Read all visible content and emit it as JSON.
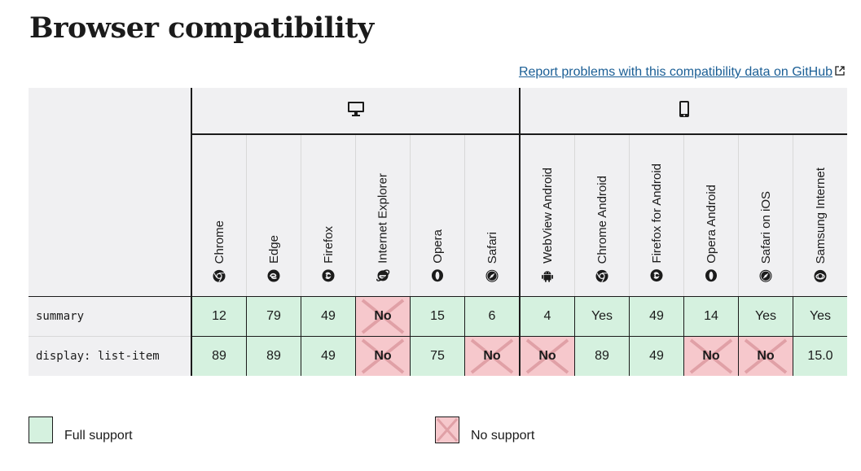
{
  "page": {
    "title": "Browser compatibility",
    "report_link": "Report problems with this compatibility data on GitHub"
  },
  "platforms": {
    "desktop_icon": "desktop-icon",
    "mobile_icon": "mobile-icon"
  },
  "browsers": [
    {
      "name": "Chrome",
      "icon": "chrome-icon",
      "platform": "desktop"
    },
    {
      "name": "Edge",
      "icon": "edge-icon",
      "platform": "desktop"
    },
    {
      "name": "Firefox",
      "icon": "firefox-icon",
      "platform": "desktop"
    },
    {
      "name": "Internet Explorer",
      "icon": "internet-explorer-icon",
      "platform": "desktop"
    },
    {
      "name": "Opera",
      "icon": "opera-icon",
      "platform": "desktop"
    },
    {
      "name": "Safari",
      "icon": "safari-icon",
      "platform": "desktop"
    },
    {
      "name": "WebView Android",
      "icon": "android-icon",
      "platform": "mobile"
    },
    {
      "name": "Chrome Android",
      "icon": "chrome-icon",
      "platform": "mobile"
    },
    {
      "name": "Firefox for Android",
      "icon": "firefox-icon",
      "platform": "mobile"
    },
    {
      "name": "Opera Android",
      "icon": "opera-icon",
      "platform": "mobile"
    },
    {
      "name": "Safari on iOS",
      "icon": "safari-icon",
      "platform": "mobile"
    },
    {
      "name": "Samsung Internet",
      "icon": "samsung-internet-icon",
      "platform": "mobile"
    }
  ],
  "features": [
    {
      "name": "summary",
      "support": [
        {
          "value": "12",
          "status": "yes"
        },
        {
          "value": "79",
          "status": "yes"
        },
        {
          "value": "49",
          "status": "yes"
        },
        {
          "value": "No",
          "status": "no"
        },
        {
          "value": "15",
          "status": "yes"
        },
        {
          "value": "6",
          "status": "yes"
        },
        {
          "value": "4",
          "status": "yes"
        },
        {
          "value": "Yes",
          "status": "yes"
        },
        {
          "value": "49",
          "status": "yes"
        },
        {
          "value": "14",
          "status": "yes"
        },
        {
          "value": "Yes",
          "status": "yes"
        },
        {
          "value": "Yes",
          "status": "yes"
        }
      ]
    },
    {
      "name": "display: list-item",
      "support": [
        {
          "value": "89",
          "status": "yes"
        },
        {
          "value": "89",
          "status": "yes"
        },
        {
          "value": "49",
          "status": "yes"
        },
        {
          "value": "No",
          "status": "no"
        },
        {
          "value": "75",
          "status": "yes"
        },
        {
          "value": "No",
          "status": "no"
        },
        {
          "value": "No",
          "status": "no"
        },
        {
          "value": "89",
          "status": "yes"
        },
        {
          "value": "49",
          "status": "yes"
        },
        {
          "value": "No",
          "status": "no"
        },
        {
          "value": "No",
          "status": "no"
        },
        {
          "value": "15.0",
          "status": "yes"
        }
      ]
    }
  ],
  "legend": {
    "full_support": "Full support",
    "no_support": "No support"
  },
  "colors": {
    "full_support_bg": "#d5f1df",
    "no_support_bg": "#f6c8cc",
    "header_bg": "#f0f0f2",
    "link": "#1a5e95"
  }
}
